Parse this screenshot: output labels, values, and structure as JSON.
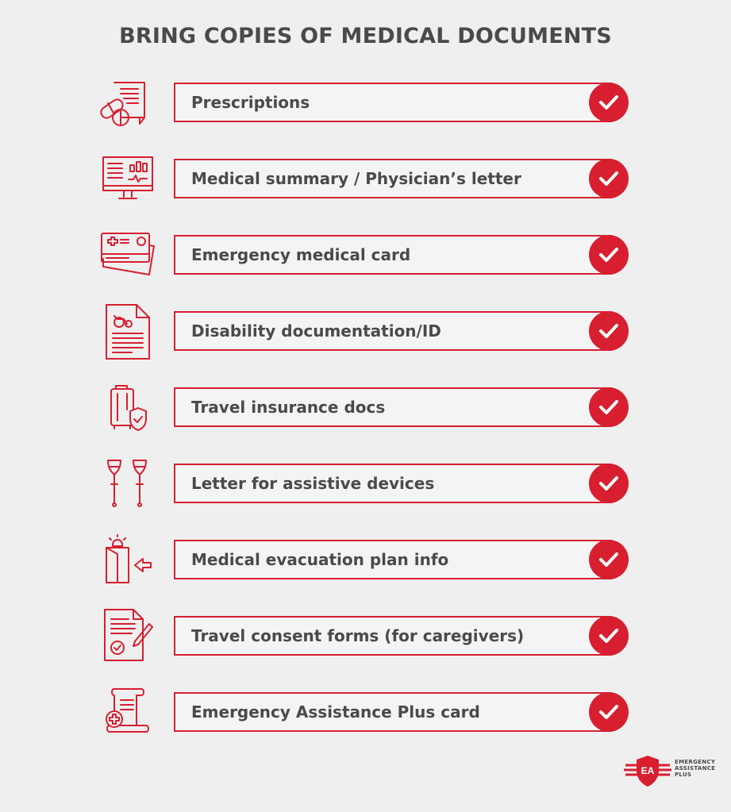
{
  "title": "BRING COPIES OF MEDICAL DOCUMENTS",
  "accent_color": "#d71f30",
  "text_color": "#4a4a4a",
  "items": [
    {
      "label": "Prescriptions",
      "icon": "prescription-pills-icon"
    },
    {
      "label": "Medical summary / Physician’s letter",
      "icon": "medical-monitor-icon"
    },
    {
      "label": "Emergency medical card",
      "icon": "medical-card-icon"
    },
    {
      "label": "Disability documentation/ID",
      "icon": "disability-document-icon"
    },
    {
      "label": "Travel insurance docs",
      "icon": "luggage-shield-icon"
    },
    {
      "label": "Letter for assistive devices",
      "icon": "crutches-icon"
    },
    {
      "label": "Medical evacuation plan info",
      "icon": "evacuation-exit-icon"
    },
    {
      "label": "Travel consent forms (for caregivers)",
      "icon": "consent-form-pen-icon"
    },
    {
      "label": "Emergency Assistance Plus card",
      "icon": "medical-scroll-icon"
    }
  ],
  "logo": {
    "text_line1": "EMERGENCY",
    "text_line2": "ASSISTANCE",
    "text_line3": "PLUS"
  }
}
